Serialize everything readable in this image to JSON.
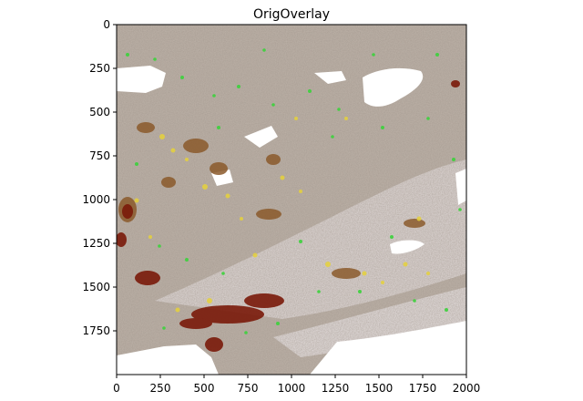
{
  "figure": {
    "title": "OrigOverlay",
    "x_ticks": [
      "0",
      "250",
      "500",
      "750",
      "1000",
      "1250",
      "1500",
      "1750",
      "2000"
    ],
    "y_ticks": [
      "0",
      "250",
      "500",
      "750",
      "1000",
      "1250",
      "1500",
      "1750"
    ],
    "xlim": [
      0,
      2000
    ],
    "ylim_inverted": [
      2000,
      0
    ],
    "tick_values_x": [
      0,
      250,
      500,
      750,
      1000,
      1250,
      1500,
      1750,
      2000
    ],
    "tick_values_y": [
      0,
      250,
      500,
      750,
      1000,
      1250,
      1500,
      1750
    ],
    "colors": {
      "tissue_base": "#b3a79c",
      "tissue_light": "#d6cfcb",
      "stain_brown": "#8b5a2b",
      "stain_dark_red": "#7a1a0a",
      "overlay_green": "#3cd23c",
      "overlay_yellow": "#e6d23c",
      "background": "#ffffff"
    }
  }
}
